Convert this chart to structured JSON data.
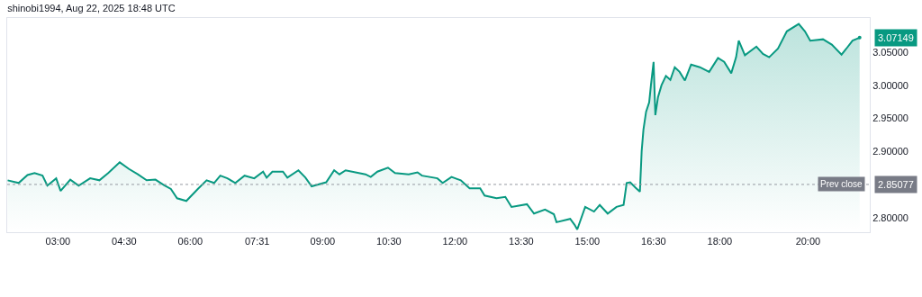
{
  "chart_data": {
    "type": "area",
    "title": "shinobi1994, Aug 22, 2025 18:48 UTC",
    "x": [
      1.86,
      2.11,
      2.31,
      2.47,
      2.65,
      2.76,
      2.96,
      3.06,
      3.28,
      3.47,
      3.73,
      3.94,
      4.14,
      4.4,
      4.61,
      4.81,
      5.01,
      5.21,
      5.4,
      5.56,
      5.7,
      5.91,
      6.17,
      6.37,
      6.54,
      6.68,
      6.84,
      7.02,
      7.23,
      7.45,
      7.65,
      7.73,
      7.86,
      8.1,
      8.2,
      8.45,
      8.61,
      8.75,
      9.08,
      9.26,
      9.38,
      9.52,
      9.97,
      10.09,
      10.24,
      10.48,
      10.64,
      10.95,
      11.15,
      11.25,
      11.6,
      11.72,
      11.92,
      12.13,
      12.33,
      12.57,
      12.67,
      12.94,
      13.14,
      13.28,
      13.63,
      13.79,
      14.04,
      14.24,
      14.3,
      14.61,
      14.71,
      14.77,
      14.95,
      15.15,
      15.28,
      15.46,
      15.66,
      15.82,
      15.89,
      15.97,
      16.09,
      16.19,
      16.23,
      16.27,
      16.33,
      16.4,
      16.44,
      16.5,
      16.54,
      16.6,
      16.68,
      16.78,
      16.88,
      16.98,
      17.09,
      17.21,
      17.35,
      17.55,
      17.76,
      17.96,
      18.1,
      18.26,
      18.37,
      18.43,
      18.57,
      18.83,
      18.98,
      19.12,
      19.32,
      19.52,
      19.79,
      19.93,
      20.05,
      20.34,
      20.54,
      20.76,
      20.87,
      21.01,
      21.17
    ],
    "series": [
      {
        "color": "#089981",
        "values": [
          2.857,
          2.853,
          2.865,
          2.868,
          2.864,
          2.849,
          2.86,
          2.841,
          2.858,
          2.849,
          2.86,
          2.857,
          2.868,
          2.884,
          2.874,
          2.866,
          2.857,
          2.858,
          2.85,
          2.844,
          2.83,
          2.826,
          2.844,
          2.857,
          2.853,
          2.864,
          2.86,
          2.853,
          2.864,
          2.86,
          2.87,
          2.861,
          2.87,
          2.87,
          2.861,
          2.872,
          2.861,
          2.848,
          2.854,
          2.872,
          2.866,
          2.872,
          2.866,
          2.862,
          2.87,
          2.876,
          2.868,
          2.866,
          2.869,
          2.864,
          2.86,
          2.853,
          2.862,
          2.857,
          2.845,
          2.845,
          2.834,
          2.83,
          2.832,
          2.817,
          2.821,
          2.807,
          2.813,
          2.806,
          2.794,
          2.799,
          2.79,
          2.783,
          2.817,
          2.81,
          2.82,
          2.807,
          2.817,
          2.82,
          2.853,
          2.854,
          2.846,
          2.84,
          2.901,
          2.933,
          2.96,
          2.974,
          3.0,
          3.035,
          2.955,
          2.982,
          3.0,
          3.014,
          3.008,
          3.027,
          3.02,
          3.007,
          3.031,
          3.027,
          3.02,
          3.041,
          3.035,
          3.018,
          3.042,
          3.067,
          3.045,
          3.058,
          3.047,
          3.042,
          3.055,
          3.081,
          3.092,
          3.081,
          3.067,
          3.069,
          3.061,
          3.046,
          3.055,
          3.067,
          3.07149
        ]
      }
    ],
    "xlim": [
      1.85,
      21.4
    ],
    "xticks": [
      {
        "value": 3,
        "label": "03:00"
      },
      {
        "value": 4.5,
        "label": "04:30"
      },
      {
        "value": 6,
        "label": "06:00"
      },
      {
        "value": 7.517,
        "label": "07:31"
      },
      {
        "value": 9,
        "label": "09:00"
      },
      {
        "value": 10.5,
        "label": "10:30"
      },
      {
        "value": 12,
        "label": "12:00"
      },
      {
        "value": 13.5,
        "label": "13:30"
      },
      {
        "value": 15,
        "label": "15:00"
      },
      {
        "value": 16.5,
        "label": "16:30"
      },
      {
        "value": 18,
        "label": "18:00"
      },
      {
        "value": 20,
        "label": "20:00"
      }
    ],
    "ylim": [
      2.779,
      3.101
    ],
    "yticks": [
      {
        "value": 2.8,
        "label": "2.80000"
      },
      {
        "value": 2.9,
        "label": "2.90000"
      },
      {
        "value": 2.95,
        "label": "2.95000"
      },
      {
        "value": 3.0,
        "label": "3.00000"
      },
      {
        "value": 3.05,
        "label": "3.05000"
      }
    ],
    "ref_lines": [
      {
        "axis": "y",
        "value": 2.85077,
        "label": "Prev close",
        "color": "#9598a1",
        "line_style": "dotted"
      }
    ],
    "annotations": [
      {
        "text": "3.07149",
        "x": 21.17,
        "y": 3.07149
      },
      "2.85077"
    ]
  }
}
